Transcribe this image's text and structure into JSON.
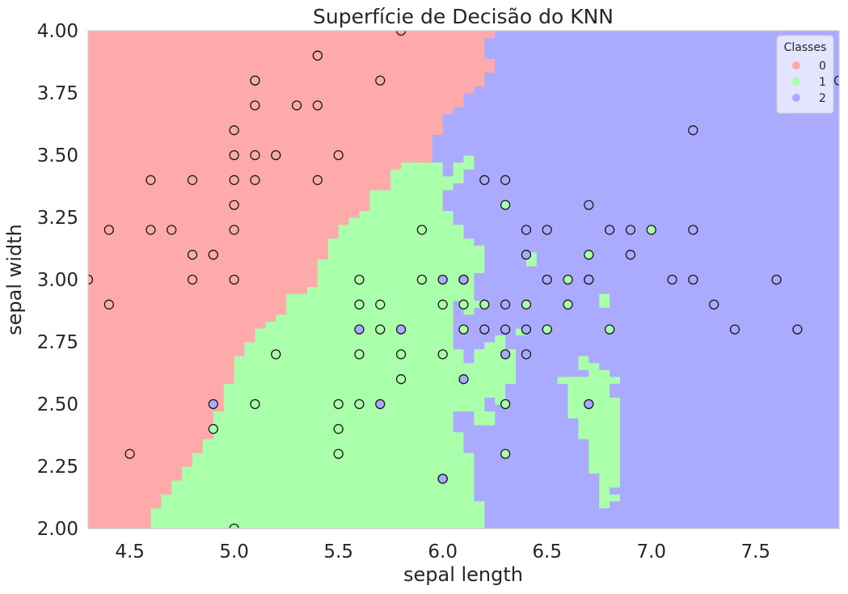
{
  "chart_data": {
    "type": "scatter",
    "title": "Superfície de Decisão do KNN",
    "xlabel": "sepal length",
    "ylabel": "sepal width",
    "xlim": [
      4.3,
      7.9
    ],
    "ylim": [
      2.0,
      4.0
    ],
    "xticks": [
      "4.5",
      "5.0",
      "5.5",
      "6.0",
      "6.5",
      "7.0",
      "7.5"
    ],
    "yticks": [
      "2.00",
      "2.25",
      "2.50",
      "2.75",
      "3.00",
      "3.25",
      "3.50",
      "3.75",
      "4.00"
    ],
    "grid": false,
    "legend": {
      "title": "Classes",
      "placement": "top-right",
      "labels": [
        "0",
        "1",
        "2"
      ]
    },
    "region_colors": [
      "#FFAAAA",
      "#AAFFAA",
      "#AAAAFF"
    ],
    "region_description": "Decision regions: class 0 (red) upper-left, class 1 (green) lower-middle, class 2 (blue) right",
    "series": [
      {
        "name": "0",
        "color": "#FFAAAA",
        "points": [
          [
            4.3,
            3.0
          ],
          [
            4.4,
            2.9
          ],
          [
            4.4,
            3.2
          ],
          [
            4.5,
            2.3
          ],
          [
            4.6,
            3.2
          ],
          [
            4.6,
            3.4
          ],
          [
            4.7,
            3.2
          ],
          [
            4.8,
            3.0
          ],
          [
            4.8,
            3.1
          ],
          [
            4.8,
            3.4
          ],
          [
            4.9,
            3.1
          ],
          [
            4.9,
            3.1
          ],
          [
            5.0,
            3.0
          ],
          [
            5.0,
            3.2
          ],
          [
            5.0,
            3.3
          ],
          [
            5.0,
            3.4
          ],
          [
            5.0,
            3.5
          ],
          [
            5.0,
            3.6
          ],
          [
            5.1,
            3.4
          ],
          [
            5.1,
            3.5
          ],
          [
            5.1,
            3.7
          ],
          [
            5.1,
            3.8
          ],
          [
            5.1,
            3.8
          ],
          [
            5.2,
            3.5
          ],
          [
            5.3,
            3.7
          ],
          [
            5.4,
            3.4
          ],
          [
            5.4,
            3.7
          ],
          [
            5.4,
            3.9
          ],
          [
            5.4,
            3.9
          ],
          [
            5.5,
            3.5
          ],
          [
            5.7,
            3.8
          ],
          [
            5.8,
            4.0
          ]
        ]
      },
      {
        "name": "1",
        "color": "#AAFFAA",
        "points": [
          [
            4.9,
            2.4
          ],
          [
            5.0,
            2.0
          ],
          [
            5.1,
            2.5
          ],
          [
            5.2,
            2.7
          ],
          [
            5.5,
            2.3
          ],
          [
            5.5,
            2.4
          ],
          [
            5.5,
            2.5
          ],
          [
            5.6,
            2.5
          ],
          [
            5.6,
            2.7
          ],
          [
            5.6,
            2.9
          ],
          [
            5.6,
            3.0
          ],
          [
            5.7,
            2.8
          ],
          [
            5.7,
            2.9
          ],
          [
            5.8,
            2.6
          ],
          [
            5.8,
            2.7
          ],
          [
            5.9,
            3.0
          ],
          [
            5.9,
            3.2
          ],
          [
            6.0,
            2.2
          ],
          [
            6.0,
            2.7
          ],
          [
            6.0,
            2.9
          ],
          [
            6.1,
            2.8
          ],
          [
            6.1,
            2.9
          ],
          [
            6.1,
            3.0
          ],
          [
            6.2,
            2.9
          ],
          [
            6.3,
            2.3
          ],
          [
            6.3,
            2.5
          ],
          [
            6.3,
            3.3
          ],
          [
            6.4,
            2.9
          ],
          [
            6.5,
            2.8
          ],
          [
            6.6,
            2.9
          ],
          [
            6.6,
            3.0
          ],
          [
            6.7,
            3.0
          ],
          [
            6.7,
            3.1
          ],
          [
            6.8,
            2.8
          ],
          [
            7.0,
            3.2
          ]
        ]
      },
      {
        "name": "2",
        "color": "#AAAAFF",
        "points": [
          [
            4.9,
            2.5
          ],
          [
            5.6,
            2.8
          ],
          [
            5.7,
            2.5
          ],
          [
            5.8,
            2.8
          ],
          [
            6.0,
            2.2
          ],
          [
            6.0,
            3.0
          ],
          [
            6.1,
            2.6
          ],
          [
            6.1,
            3.0
          ],
          [
            6.2,
            2.8
          ],
          [
            6.2,
            3.4
          ],
          [
            6.3,
            2.7
          ],
          [
            6.3,
            2.8
          ],
          [
            6.3,
            2.9
          ],
          [
            6.3,
            3.4
          ],
          [
            6.4,
            2.7
          ],
          [
            6.4,
            2.8
          ],
          [
            6.4,
            3.1
          ],
          [
            6.4,
            3.2
          ],
          [
            6.5,
            3.0
          ],
          [
            6.5,
            3.2
          ],
          [
            6.7,
            2.5
          ],
          [
            6.7,
            3.0
          ],
          [
            6.7,
            3.3
          ],
          [
            6.8,
            3.2
          ],
          [
            6.9,
            3.1
          ],
          [
            6.9,
            3.2
          ],
          [
            7.1,
            3.0
          ],
          [
            7.2,
            3.0
          ],
          [
            7.2,
            3.2
          ],
          [
            7.2,
            3.6
          ],
          [
            7.3,
            2.9
          ],
          [
            7.4,
            2.8
          ],
          [
            7.6,
            3.0
          ],
          [
            7.7,
            2.8
          ],
          [
            7.9,
            3.8
          ]
        ]
      }
    ]
  }
}
